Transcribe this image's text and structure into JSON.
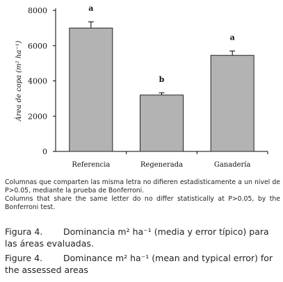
{
  "chart_data": {
    "type": "bar",
    "categories": [
      "Referencia",
      "Regenerada",
      "Ganadería"
    ],
    "values": [
      7000,
      3200,
      5450
    ],
    "errors": [
      350,
      120,
      250
    ],
    "significance_letters": [
      "a",
      "b",
      "a"
    ],
    "ylabel": "Área de copa (m² ha⁻¹)",
    "xlabel": "",
    "ylim": [
      0,
      8000
    ],
    "yticks": [
      "0",
      "2000",
      "4000",
      "6000",
      "8000"
    ],
    "bar_color": "#b3b3b3",
    "grid": false
  },
  "notes": {
    "spanish": "Columnas que comparten las misma letra no difieren estadisticamente a un nivel de P>0.05, mediante la prueba de Bonferroni.",
    "english": "Columns that share the same letter do no differ statistically at P>0.05, by the Bonferroni test."
  },
  "caption_es": {
    "label": "Figura 4.",
    "text": "Dominancia m² ha⁻¹ (media y error típico) para las áreas evaluadas."
  },
  "caption_en": {
    "label": "Figure 4.",
    "text": "Dominance m² ha⁻¹ (mean and typical error) for the assessed areas"
  }
}
